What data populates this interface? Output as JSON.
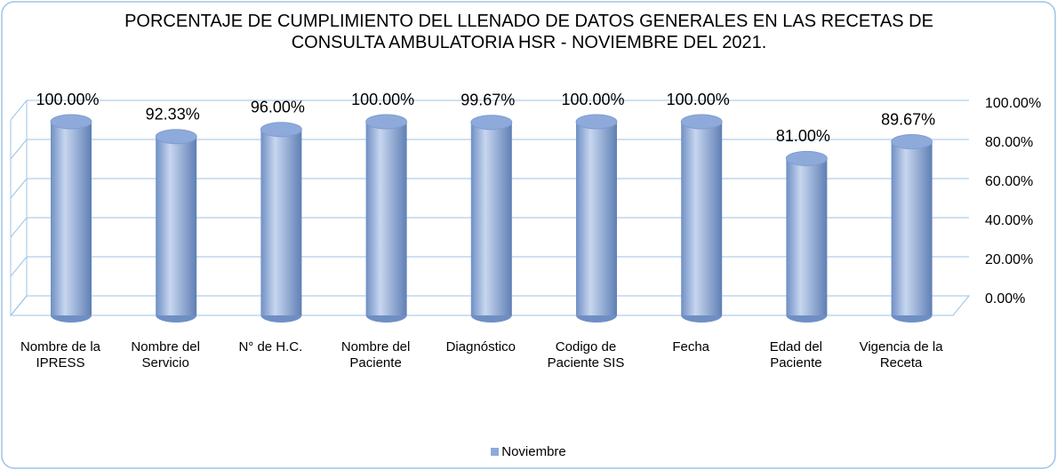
{
  "chart_data": {
    "type": "bar",
    "title": "PORCENTAJE  DE CUMPLIMIENTO  DEL LLENADO DE DATOS GENERALES EN LAS RECETAS DE CONSULTA AMBULATORIA HSR - NOVIEMBRE DEL 2021.",
    "categories": [
      "Nombre de la IPRESS",
      "Nombre del Servicio",
      "N° de H.C.",
      "Nombre del Paciente",
      "Diagnóstico",
      "Codigo de Paciente SIS",
      "Fecha",
      "Edad del Paciente",
      "Vigencia de la Receta"
    ],
    "series": [
      {
        "name": "Noviembre",
        "color": "#8eaadb",
        "values": [
          100,
          92.33,
          96,
          100,
          99.67,
          100,
          100,
          81,
          89.67
        ],
        "value_labels": [
          "100.00%",
          "92.33%",
          "96.00%",
          "100.00%",
          "99.67%",
          "100.00%",
          "100.00%",
          "81.00%",
          "89.67%"
        ]
      }
    ],
    "ylim": [
      0,
      100
    ],
    "yticks": [
      {
        "value": 0,
        "label": "0.00%"
      },
      {
        "value": 20,
        "label": "20.00%"
      },
      {
        "value": 40,
        "label": "40.00%"
      },
      {
        "value": 60,
        "label": "60.00%"
      },
      {
        "value": 80,
        "label": "80.00%"
      },
      {
        "value": 100,
        "label": "100.00%"
      }
    ],
    "grid": true,
    "legend": "bottom"
  }
}
